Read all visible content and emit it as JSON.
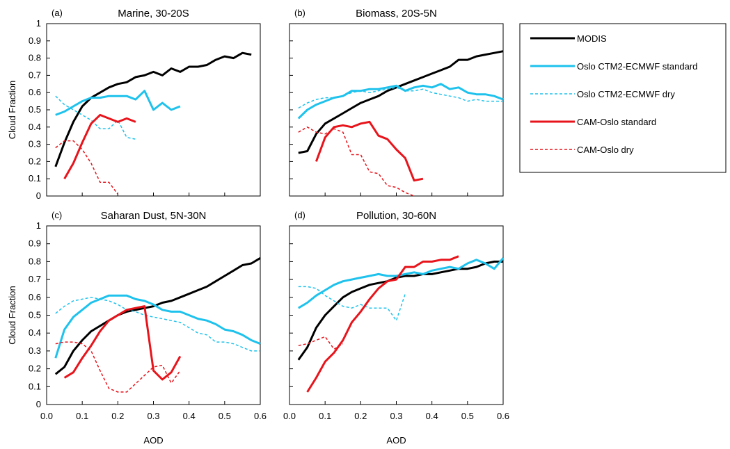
{
  "legend": {
    "placement": "right",
    "entries": [
      {
        "label": "MODIS",
        "color": "#000000",
        "dash": "solid"
      },
      {
        "label": "Oslo CTM2-ECMWF standard",
        "color": "#1ec2ec",
        "dash": "solid"
      },
      {
        "label": "Oslo CTM2-ECMWF dry",
        "color": "#1ec2ec",
        "dash": "dashed"
      },
      {
        "label": "CAM-Oslo standard",
        "color": "#e8141b",
        "dash": "solid"
      },
      {
        "label": "CAM-Oslo dry",
        "color": "#e8141b",
        "dash": "dashed"
      }
    ]
  },
  "chart_data": [
    {
      "type": "line",
      "panel_letter": "(a)",
      "title": "Marine, 30-20S",
      "xlabel": "",
      "ylabel": "Cloud Fraction",
      "xlim": [
        0,
        0.6
      ],
      "ylim": [
        0,
        1
      ],
      "grid": false,
      "series": [
        {
          "name": "MODIS",
          "x": [
            0.025,
            0.05,
            0.075,
            0.1,
            0.125,
            0.15,
            0.175,
            0.2,
            0.225,
            0.25,
            0.275,
            0.3,
            0.325,
            0.35,
            0.375,
            0.4,
            0.425,
            0.45,
            0.475,
            0.5,
            0.525,
            0.55,
            0.575
          ],
          "y": [
            0.17,
            0.31,
            0.43,
            0.52,
            0.57,
            0.6,
            0.63,
            0.65,
            0.66,
            0.69,
            0.7,
            0.72,
            0.7,
            0.74,
            0.72,
            0.75,
            0.75,
            0.76,
            0.79,
            0.81,
            0.8,
            0.83,
            0.82
          ]
        },
        {
          "name": "Oslo CTM2-ECMWF standard",
          "x": [
            0.025,
            0.05,
            0.075,
            0.1,
            0.125,
            0.15,
            0.175,
            0.2,
            0.225,
            0.25,
            0.275,
            0.3,
            0.325,
            0.35,
            0.375
          ],
          "y": [
            0.47,
            0.49,
            0.52,
            0.55,
            0.57,
            0.57,
            0.58,
            0.58,
            0.58,
            0.56,
            0.61,
            0.5,
            0.54,
            0.5,
            0.52
          ]
        },
        {
          "name": "Oslo CTM2-ECMWF dry",
          "x": [
            0.025,
            0.05,
            0.075,
            0.1,
            0.125,
            0.15,
            0.175,
            0.2,
            0.225,
            0.25
          ],
          "y": [
            0.58,
            0.53,
            0.5,
            0.47,
            0.44,
            0.39,
            0.39,
            0.44,
            0.34,
            0.33
          ]
        },
        {
          "name": "CAM-Oslo standard",
          "x": [
            0.05,
            0.075,
            0.1,
            0.125,
            0.15,
            0.175,
            0.2,
            0.225,
            0.25
          ],
          "y": [
            0.1,
            0.19,
            0.31,
            0.42,
            0.47,
            0.45,
            0.43,
            0.45,
            0.43
          ]
        },
        {
          "name": "CAM-Oslo dry",
          "x": [
            0.025,
            0.05,
            0.075,
            0.1,
            0.125,
            0.15,
            0.175,
            0.2
          ],
          "y": [
            0.28,
            0.32,
            0.32,
            0.27,
            0.19,
            0.08,
            0.08,
            0.01
          ]
        }
      ]
    },
    {
      "type": "line",
      "panel_letter": "(b)",
      "title": "Biomass, 20S-5N",
      "xlabel": "",
      "ylabel": "",
      "xlim": [
        0,
        0.6
      ],
      "ylim": [
        0,
        1
      ],
      "grid": false,
      "series": [
        {
          "name": "MODIS",
          "x": [
            0.025,
            0.05,
            0.075,
            0.1,
            0.125,
            0.15,
            0.175,
            0.2,
            0.225,
            0.25,
            0.275,
            0.3,
            0.325,
            0.35,
            0.375,
            0.4,
            0.425,
            0.45,
            0.475,
            0.5,
            0.525,
            0.55,
            0.575,
            0.6
          ],
          "y": [
            0.25,
            0.26,
            0.36,
            0.42,
            0.45,
            0.48,
            0.51,
            0.54,
            0.56,
            0.58,
            0.61,
            0.63,
            0.65,
            0.67,
            0.69,
            0.71,
            0.73,
            0.75,
            0.79,
            0.79,
            0.81,
            0.82,
            0.83,
            0.84
          ]
        },
        {
          "name": "Oslo CTM2-ECMWF standard",
          "x": [
            0.025,
            0.05,
            0.075,
            0.1,
            0.125,
            0.15,
            0.175,
            0.2,
            0.225,
            0.25,
            0.275,
            0.3,
            0.325,
            0.35,
            0.375,
            0.4,
            0.425,
            0.45,
            0.475,
            0.5,
            0.525,
            0.55,
            0.575,
            0.6
          ],
          "y": [
            0.45,
            0.5,
            0.53,
            0.55,
            0.57,
            0.58,
            0.61,
            0.61,
            0.62,
            0.62,
            0.63,
            0.64,
            0.61,
            0.63,
            0.64,
            0.63,
            0.65,
            0.62,
            0.63,
            0.6,
            0.59,
            0.59,
            0.58,
            0.56
          ]
        },
        {
          "name": "Oslo CTM2-ECMWF dry",
          "x": [
            0.025,
            0.05,
            0.075,
            0.1,
            0.125,
            0.15,
            0.175,
            0.2,
            0.225,
            0.25,
            0.275,
            0.3,
            0.325,
            0.35,
            0.375,
            0.4,
            0.425,
            0.45,
            0.475,
            0.5,
            0.525,
            0.55,
            0.575,
            0.6
          ],
          "y": [
            0.51,
            0.54,
            0.56,
            0.57,
            0.57,
            0.58,
            0.6,
            0.61,
            0.6,
            0.61,
            0.62,
            0.63,
            0.61,
            0.61,
            0.62,
            0.6,
            0.59,
            0.58,
            0.57,
            0.55,
            0.56,
            0.55,
            0.55,
            0.55
          ]
        },
        {
          "name": "CAM-Oslo standard",
          "x": [
            0.075,
            0.1,
            0.125,
            0.15,
            0.175,
            0.2,
            0.225,
            0.25,
            0.275,
            0.3,
            0.325,
            0.35,
            0.375
          ],
          "y": [
            0.2,
            0.34,
            0.4,
            0.41,
            0.4,
            0.42,
            0.43,
            0.35,
            0.33,
            0.27,
            0.22,
            0.09,
            0.1
          ]
        },
        {
          "name": "CAM-Oslo dry",
          "x": [
            0.025,
            0.05,
            0.075,
            0.1,
            0.125,
            0.15,
            0.175,
            0.2,
            0.225,
            0.25,
            0.275,
            0.3,
            0.325,
            0.35
          ],
          "y": [
            0.37,
            0.4,
            0.37,
            0.36,
            0.39,
            0.37,
            0.24,
            0.24,
            0.14,
            0.13,
            0.06,
            0.05,
            0.02,
            0.0
          ]
        }
      ]
    },
    {
      "type": "line",
      "panel_letter": "(c)",
      "title": "Saharan Dust, 5N-30N",
      "xlabel": "AOD",
      "ylabel": "Cloud Fraction",
      "xlim": [
        0,
        0.6
      ],
      "ylim": [
        0,
        1
      ],
      "grid": false,
      "series": [
        {
          "name": "MODIS",
          "x": [
            0.025,
            0.05,
            0.075,
            0.1,
            0.125,
            0.15,
            0.175,
            0.2,
            0.225,
            0.25,
            0.275,
            0.3,
            0.325,
            0.35,
            0.375,
            0.4,
            0.425,
            0.45,
            0.475,
            0.5,
            0.525,
            0.55,
            0.575,
            0.6
          ],
          "y": [
            0.17,
            0.21,
            0.3,
            0.36,
            0.41,
            0.44,
            0.47,
            0.5,
            0.52,
            0.53,
            0.54,
            0.55,
            0.57,
            0.58,
            0.6,
            0.62,
            0.64,
            0.66,
            0.69,
            0.72,
            0.75,
            0.78,
            0.79,
            0.82
          ]
        },
        {
          "name": "Oslo CTM2-ECMWF standard",
          "x": [
            0.025,
            0.05,
            0.075,
            0.1,
            0.125,
            0.15,
            0.175,
            0.2,
            0.225,
            0.25,
            0.275,
            0.3,
            0.325,
            0.35,
            0.375,
            0.4,
            0.425,
            0.45,
            0.475,
            0.5,
            0.525,
            0.55,
            0.575,
            0.6
          ],
          "y": [
            0.26,
            0.42,
            0.49,
            0.53,
            0.57,
            0.59,
            0.61,
            0.61,
            0.61,
            0.59,
            0.58,
            0.56,
            0.53,
            0.52,
            0.52,
            0.5,
            0.48,
            0.47,
            0.45,
            0.42,
            0.41,
            0.39,
            0.36,
            0.34
          ]
        },
        {
          "name": "Oslo CTM2-ECMWF dry",
          "x": [
            0.025,
            0.05,
            0.075,
            0.1,
            0.125,
            0.15,
            0.175,
            0.2,
            0.225,
            0.25,
            0.275,
            0.3,
            0.325,
            0.35,
            0.375,
            0.4,
            0.425,
            0.45,
            0.475,
            0.5,
            0.525,
            0.55,
            0.575,
            0.6
          ],
          "y": [
            0.51,
            0.55,
            0.58,
            0.59,
            0.6,
            0.59,
            0.58,
            0.56,
            0.53,
            0.52,
            0.5,
            0.49,
            0.48,
            0.47,
            0.46,
            0.43,
            0.4,
            0.39,
            0.35,
            0.35,
            0.34,
            0.32,
            0.3,
            0.3
          ]
        },
        {
          "name": "CAM-Oslo standard",
          "x": [
            0.05,
            0.075,
            0.1,
            0.125,
            0.15,
            0.175,
            0.2,
            0.225,
            0.25,
            0.275,
            0.3,
            0.325,
            0.35,
            0.375
          ],
          "y": [
            0.15,
            0.18,
            0.26,
            0.33,
            0.41,
            0.47,
            0.5,
            0.53,
            0.54,
            0.55,
            0.19,
            0.14,
            0.18,
            0.27
          ]
        },
        {
          "name": "CAM-Oslo dry",
          "x": [
            0.025,
            0.05,
            0.075,
            0.1,
            0.125,
            0.15,
            0.175,
            0.2,
            0.225,
            0.3,
            0.325,
            0.35,
            0.375
          ],
          "y": [
            0.34,
            0.35,
            0.35,
            0.34,
            0.3,
            0.19,
            0.09,
            0.07,
            0.07,
            0.21,
            0.22,
            0.12,
            0.19
          ]
        }
      ]
    },
    {
      "type": "line",
      "panel_letter": "(d)",
      "title": "Pollution, 30-60N",
      "xlabel": "AOD",
      "ylabel": "",
      "xlim": [
        0,
        0.6
      ],
      "ylim": [
        0,
        1
      ],
      "grid": false,
      "series": [
        {
          "name": "MODIS",
          "x": [
            0.025,
            0.05,
            0.075,
            0.1,
            0.125,
            0.15,
            0.175,
            0.2,
            0.225,
            0.25,
            0.275,
            0.3,
            0.325,
            0.35,
            0.375,
            0.4,
            0.425,
            0.45,
            0.475,
            0.5,
            0.525,
            0.55,
            0.575,
            0.6
          ],
          "y": [
            0.25,
            0.32,
            0.43,
            0.5,
            0.55,
            0.6,
            0.63,
            0.65,
            0.67,
            0.68,
            0.69,
            0.71,
            0.72,
            0.72,
            0.73,
            0.73,
            0.74,
            0.75,
            0.76,
            0.76,
            0.77,
            0.79,
            0.8,
            0.8
          ]
        },
        {
          "name": "Oslo CTM2-ECMWF standard",
          "x": [
            0.025,
            0.05,
            0.075,
            0.1,
            0.125,
            0.15,
            0.175,
            0.2,
            0.225,
            0.25,
            0.275,
            0.3,
            0.325,
            0.35,
            0.375,
            0.4,
            0.425,
            0.45,
            0.475,
            0.5,
            0.525,
            0.55,
            0.575,
            0.6
          ],
          "y": [
            0.54,
            0.57,
            0.61,
            0.64,
            0.67,
            0.69,
            0.7,
            0.71,
            0.72,
            0.73,
            0.72,
            0.72,
            0.73,
            0.74,
            0.73,
            0.75,
            0.76,
            0.77,
            0.76,
            0.79,
            0.81,
            0.79,
            0.76,
            0.82
          ]
        },
        {
          "name": "Oslo CTM2-ECMWF dry",
          "x": [
            0.025,
            0.05,
            0.075,
            0.1,
            0.125,
            0.15,
            0.175,
            0.2,
            0.225,
            0.25,
            0.275,
            0.3,
            0.325
          ],
          "y": [
            0.66,
            0.66,
            0.65,
            0.61,
            0.58,
            0.55,
            0.54,
            0.56,
            0.54,
            0.54,
            0.54,
            0.47,
            0.62
          ]
        },
        {
          "name": "CAM-Oslo standard",
          "x": [
            0.05,
            0.075,
            0.1,
            0.125,
            0.15,
            0.175,
            0.2,
            0.225,
            0.25,
            0.275,
            0.3,
            0.325,
            0.35,
            0.375,
            0.4,
            0.425,
            0.45,
            0.475
          ],
          "y": [
            0.07,
            0.15,
            0.24,
            0.29,
            0.36,
            0.46,
            0.52,
            0.59,
            0.65,
            0.69,
            0.7,
            0.77,
            0.77,
            0.8,
            0.8,
            0.81,
            0.81,
            0.83
          ]
        },
        {
          "name": "CAM-Oslo dry",
          "x": [
            0.025,
            0.05,
            0.075,
            0.1,
            0.125,
            0.15
          ],
          "y": [
            0.33,
            0.34,
            0.36,
            0.38,
            0.31,
            0.34
          ]
        }
      ]
    }
  ]
}
